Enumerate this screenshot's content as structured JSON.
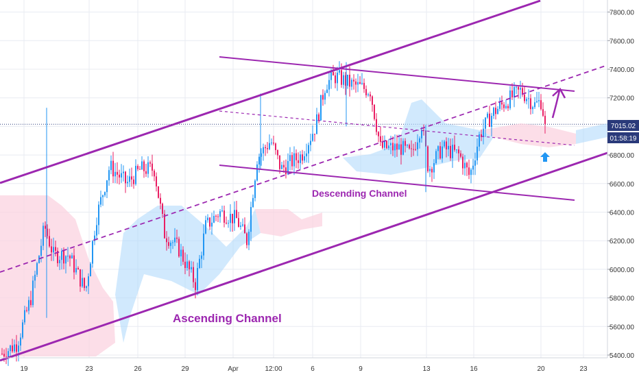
{
  "chart_data": {
    "type": "candlestick",
    "title": "",
    "ylim": [
      5380,
      7960
    ],
    "y_ticks": [
      5400,
      5600,
      5800,
      6000,
      6200,
      6400,
      6600,
      6800,
      7000,
      7200,
      7400,
      7600,
      7800
    ],
    "y_tick_labels": [
      "5400.00",
      "5600.00",
      "5800.00",
      "6000.00",
      "6200.00",
      "6400.00",
      "6600.00",
      "6800.00",
      "7000.00",
      "7200.00",
      "7400.00",
      "7600.00",
      "7800.00"
    ],
    "x_tick_labels": [
      "19",
      "23",
      "26",
      "29",
      "Apr",
      "12:00",
      "6",
      "9",
      "13",
      "16",
      "20",
      "23"
    ],
    "current_price": {
      "label": "7015.02",
      "value": 7015.02
    },
    "countdown": {
      "label": "01:58:19"
    },
    "annotations": [
      {
        "id": "ascending",
        "text": "Ascending Channel"
      },
      {
        "id": "descending",
        "text": "Descending Channel"
      }
    ],
    "grid": true,
    "colors": {
      "up": "#2196f3",
      "down": "#e91e63",
      "channel": "#9c27b0",
      "label_text": "#9c27b0",
      "price_tag": "#2a3a7a",
      "arrow_up": "#2196f3",
      "cloud_bull": "#b3dafb",
      "cloud_bear": "#fbd3e0",
      "grid": "#e8ebf2"
    }
  }
}
